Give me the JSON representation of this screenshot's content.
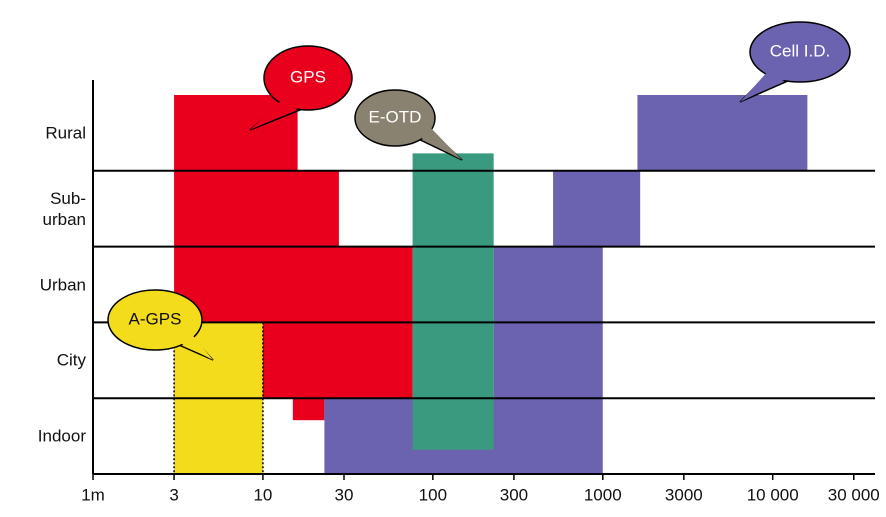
{
  "chart_data": {
    "type": "range",
    "categories": [
      "Rural",
      "Sub-\nurban",
      "Urban",
      "City",
      "Indoor"
    ],
    "xscale": "log",
    "xlim": [
      1,
      40000
    ],
    "xticks": [
      {
        "value": 1,
        "label": "1m"
      },
      3,
      10,
      30,
      100,
      300,
      1000,
      3000,
      {
        "value": 10000,
        "label": "10 000"
      },
      {
        "value": 30000,
        "label": "30 000"
      }
    ],
    "series": [
      {
        "name": "GPS",
        "color": "#e8001c",
        "label_color": "#e8001c",
        "values": [
          [
            3,
            16
          ],
          [
            3,
            28
          ],
          [
            3,
            76
          ],
          [
            3,
            76
          ],
          [
            15,
            23
          ]
        ]
      },
      {
        "name": "Cell I.D.",
        "color": "#6b63b0",
        "label_color": "#6b63b0",
        "values": [
          [
            1600,
            16000
          ],
          [
            510,
            1660
          ],
          [
            228,
            1000
          ],
          [
            228,
            1000
          ],
          [
            23,
            1000
          ]
        ]
      },
      {
        "name": "E-OTD",
        "color": "#3a9a80",
        "label_color": "#8a8270",
        "values": [
          [
            76,
            228
          ],
          [
            76,
            228
          ],
          [
            76,
            228
          ],
          [
            76,
            228
          ],
          [
            76,
            228
          ]
        ]
      },
      {
        "name": "A-GPS",
        "color": "#f2dc1c",
        "label_color": "#f2dc1c",
        "values": [
          null,
          null,
          null,
          [
            3,
            10
          ],
          [
            3,
            10
          ]
        ]
      }
    ]
  }
}
